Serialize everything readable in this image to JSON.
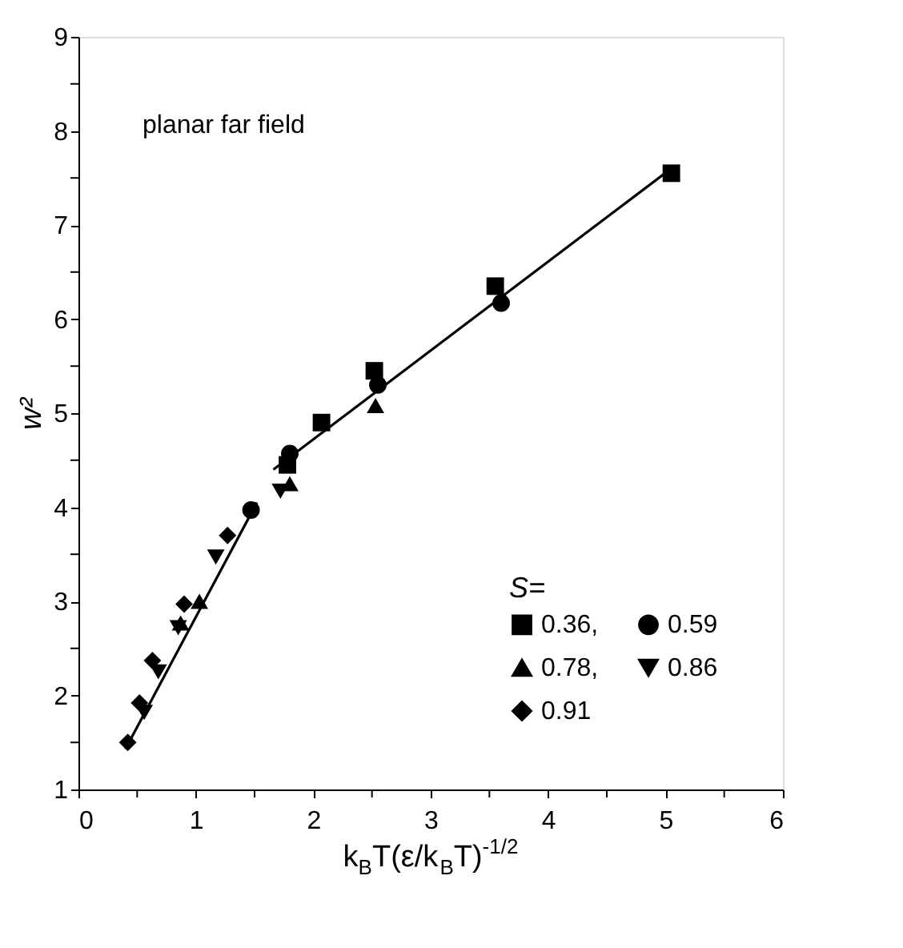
{
  "chart_data": {
    "type": "scatter",
    "xlabel": "k$_{B}$T(ε/k$_{B}$T)$^{-1/2}$",
    "ylabel": "w²",
    "legend_title": "S=",
    "legend": "bottom right",
    "grid": false,
    "annotations": [
      "planar far field"
    ],
    "xlim": [
      0,
      6
    ],
    "ylim": [
      1,
      9
    ],
    "xticks": [
      0,
      {
        "value": 0.5,
        "label": null
      },
      1,
      {
        "value": 1.5,
        "label": null
      },
      2,
      {
        "value": 2.5,
        "label": null
      },
      3,
      {
        "value": 3.5,
        "label": null
      },
      4,
      {
        "value": 4.5,
        "label": null
      },
      5,
      {
        "value": 5.5,
        "label": null
      },
      6
    ],
    "yticks": [
      1,
      {
        "value": 1.5,
        "label": null
      },
      2,
      {
        "value": 2.5,
        "label": null
      },
      3,
      {
        "value": 3.5,
        "label": null
      },
      4,
      {
        "value": 4.5,
        "label": null
      },
      5,
      {
        "value": 5.5,
        "label": null
      },
      6,
      {
        "value": 6.5,
        "label": null
      },
      7,
      {
        "value": 7.5,
        "label": null
      },
      8,
      {
        "value": 8.5,
        "label": null
      },
      9
    ],
    "series": [
      {
        "name": "0.36,",
        "color": "#000000",
        "marker": "square",
        "x": [
          1.78,
          2.07,
          2.52,
          3.55,
          5.05
        ],
        "values": [
          4.45,
          4.9,
          5.45,
          6.35,
          7.55
        ]
      },
      {
        "name": "0.59",
        "color": "#000000",
        "marker": "circle",
        "x": [
          1.47,
          1.8,
          2.55,
          3.6
        ],
        "values": [
          3.97,
          4.57,
          5.3,
          6.17
        ]
      },
      {
        "name": "0.78,",
        "color": "#000000",
        "marker": "triangle",
        "x": [
          0.87,
          1.03,
          1.8,
          2.53
        ],
        "values": [
          2.77,
          3.0,
          4.25,
          5.08
        ]
      },
      {
        "name": "0.86",
        "color": "#000000",
        "marker": "triangle-down",
        "x": [
          0.56,
          0.68,
          0.85,
          1.17,
          1.72
        ],
        "values": [
          1.82,
          2.25,
          2.72,
          3.47,
          4.17
        ]
      },
      {
        "name": "0.91",
        "color": "#000000",
        "marker": "diamond",
        "x": [
          0.42,
          0.52,
          0.63,
          0.9,
          1.27
        ],
        "values": [
          1.5,
          1.92,
          2.37,
          2.97,
          3.7
        ]
      },
      {
        "type": "line",
        "color": "#000000",
        "marker": "none",
        "line_style": "solid",
        "x": [
          0.4,
          1.52
        ],
        "values": [
          1.43,
          4.05
        ]
      },
      {
        "type": "line",
        "color": "#000000",
        "marker": "none",
        "line_style": "solid",
        "x": [
          1.66,
          5.07
        ],
        "values": [
          4.4,
          7.62
        ]
      }
    ]
  }
}
